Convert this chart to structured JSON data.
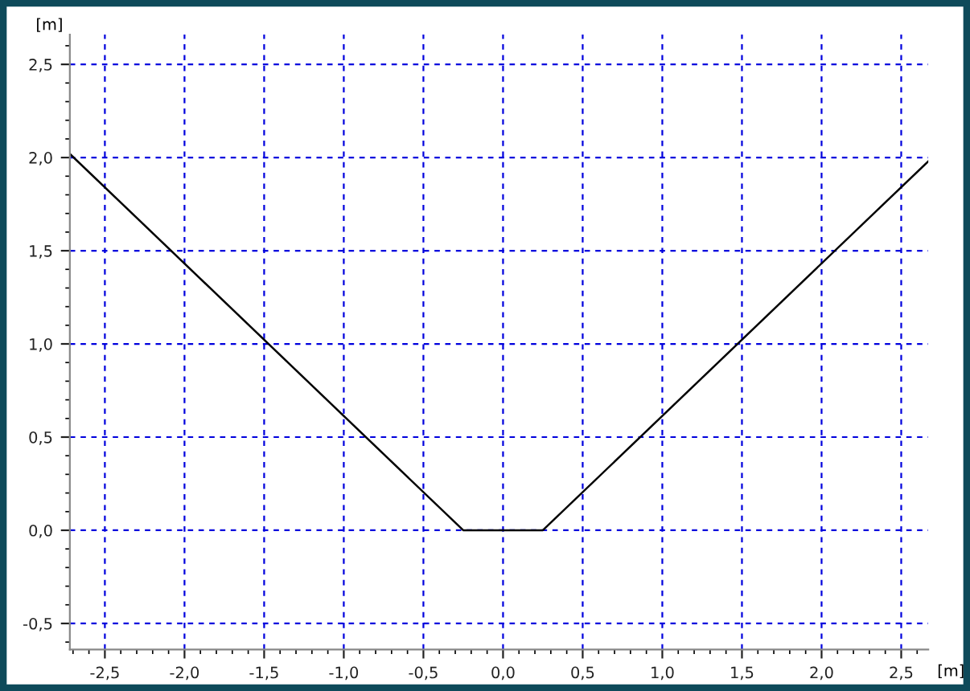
{
  "chart_data": {
    "type": "line",
    "xlabel": "[m]",
    "ylabel": "[m]",
    "x": [
      -2.72,
      -0.25,
      0.25,
      2.67
    ],
    "series": [
      {
        "color": "#000000",
        "values": [
          2.02,
          0.0,
          0.0,
          1.98
        ]
      }
    ],
    "xlim": [
      -2.72,
      2.67
    ],
    "ylim": [
      -0.64,
      2.66
    ],
    "xticks": [
      {
        "value": -2.5,
        "label": "-2,5"
      },
      {
        "value": -2.0,
        "label": "-2,0"
      },
      {
        "value": -1.5,
        "label": "-1,5"
      },
      {
        "value": -1.0,
        "label": "-1,0"
      },
      {
        "value": -0.5,
        "label": "-0,5"
      },
      {
        "value": 0.0,
        "label": "0,0"
      },
      {
        "value": 0.5,
        "label": "0,5"
      },
      {
        "value": 1.0,
        "label": "1,0"
      },
      {
        "value": 1.5,
        "label": "1,5"
      },
      {
        "value": 2.0,
        "label": "2,0"
      },
      {
        "value": 2.5,
        "label": "2,5"
      }
    ],
    "yticks": [
      {
        "value": -0.5,
        "label": "-0,5"
      },
      {
        "value": 0.0,
        "label": "0,0"
      },
      {
        "value": 0.5,
        "label": "0,5"
      },
      {
        "value": 1.0,
        "label": "1,0"
      },
      {
        "value": 1.5,
        "label": "1,5"
      },
      {
        "value": 2.0,
        "label": "2,0"
      },
      {
        "value": 2.5,
        "label": "2,5"
      }
    ],
    "grid": true,
    "marker": "none",
    "line_style": "solid",
    "legend": false
  }
}
